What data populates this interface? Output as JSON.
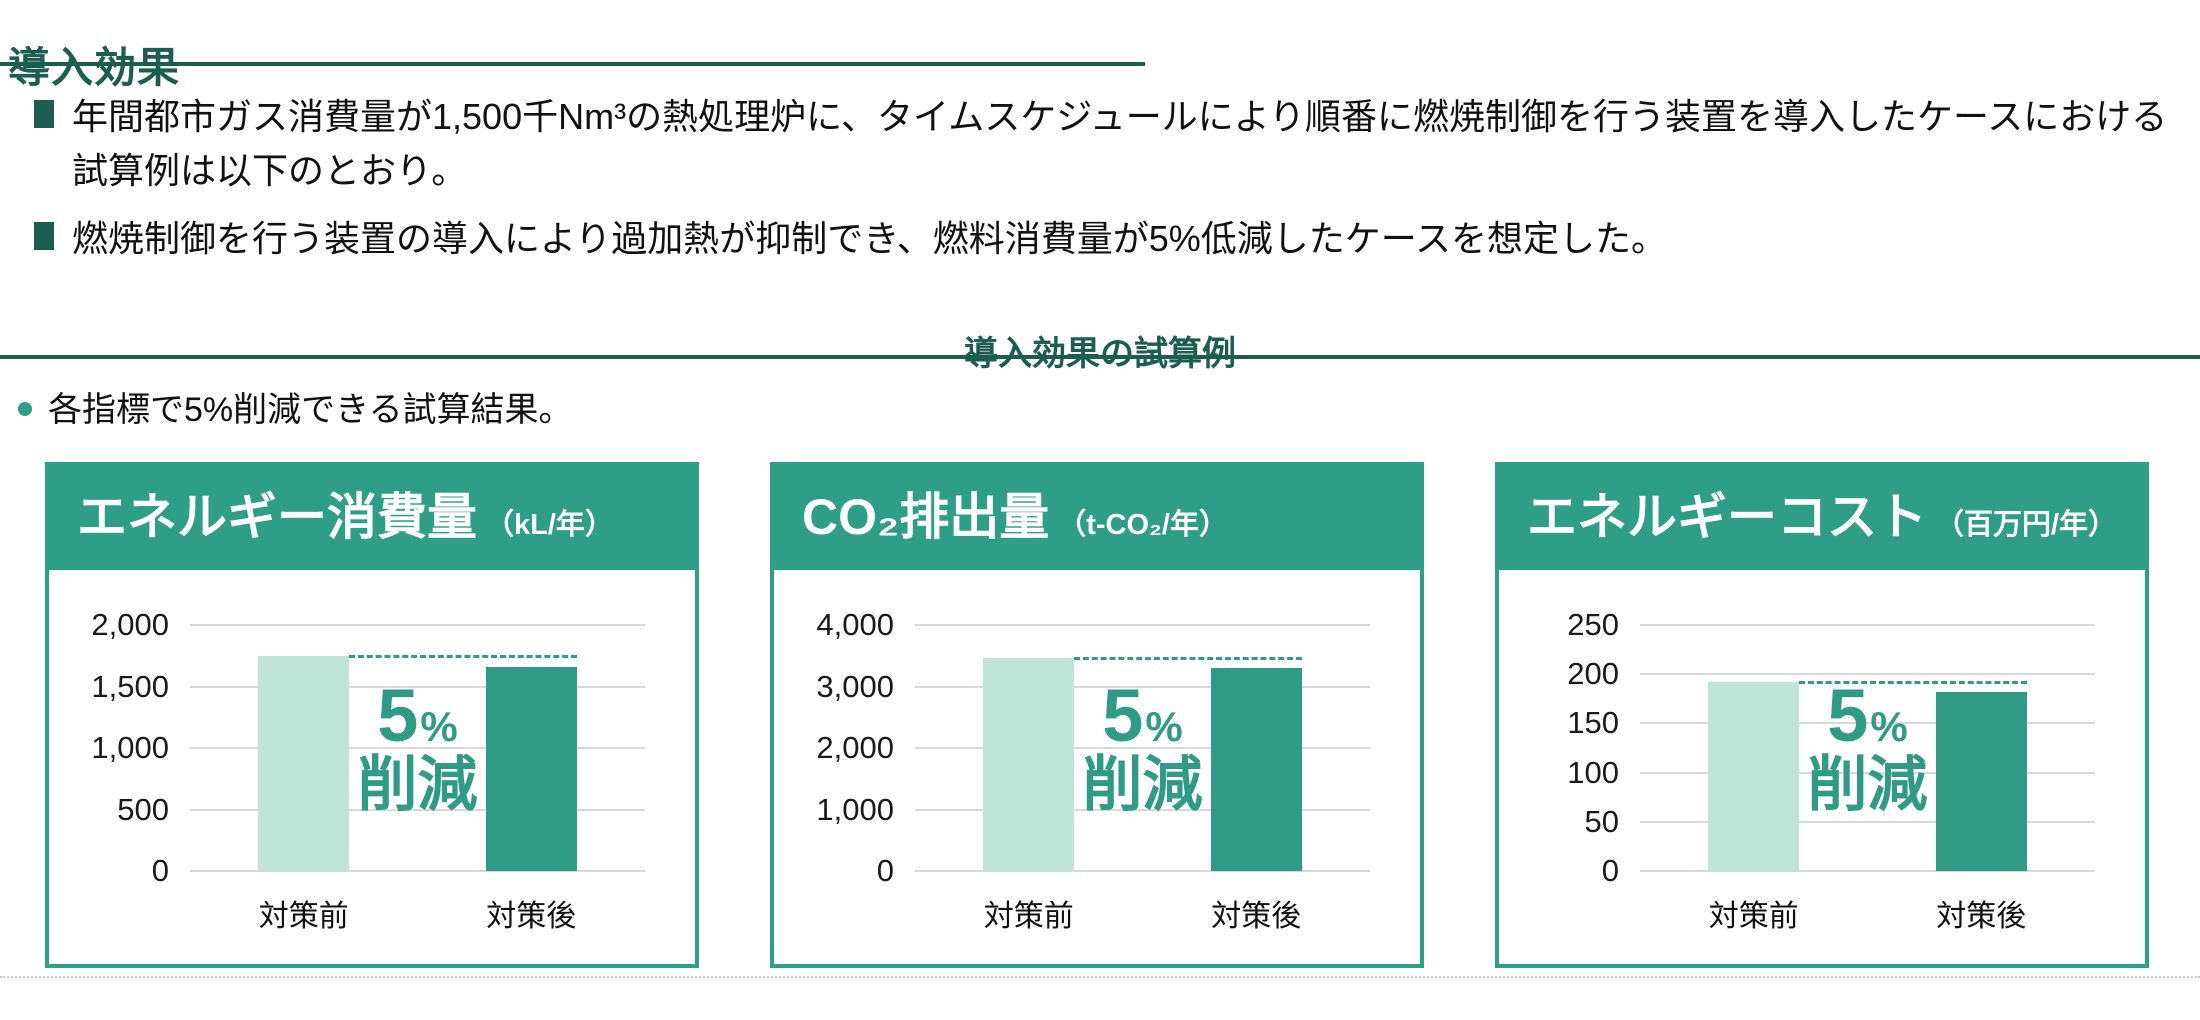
{
  "page": {
    "title": "導入効果",
    "bullets": [
      "年間都市ガス消費量が1,500千Nm³の熱処理炉に、タイムスケジュールにより順番に燃焼制御を行う装置を導入したケースにおける試算例は以下のとおり。",
      "燃焼制御を行う装置の導入により過加熱が抑制でき、燃料消費量が5%低減したケースを想定した。"
    ],
    "section_heading": "導入効果の試算例",
    "sub_bullet": "各指標で5%削減できる試算結果。"
  },
  "colors": {
    "accent_dark": "#1b5e50",
    "accent_teal": "#2f9e86",
    "bar_light": "#bee5d8",
    "bar_dark": "#2f9b84",
    "gridline": "#d9d9d9"
  },
  "chart_data": [
    {
      "type": "bar",
      "title": "エネルギー消費量",
      "unit": "（kL/年）",
      "categories": [
        "対策前",
        "対策後"
      ],
      "values": [
        1750,
        1660
      ],
      "ylim": [
        0,
        2000
      ],
      "yticks": [
        0,
        500,
        1000,
        1500,
        2000
      ],
      "grid": true,
      "legend": "none",
      "annotation": {
        "value": "5",
        "suffix": "%",
        "label": "削減"
      },
      "reference_line": "dashed at before-value"
    },
    {
      "type": "bar",
      "title": "CO₂排出量",
      "unit": "（t-CO₂/年）",
      "categories": [
        "対策前",
        "対策後"
      ],
      "values": [
        3470,
        3300
      ],
      "ylim": [
        0,
        4000
      ],
      "yticks": [
        0,
        1000,
        2000,
        3000,
        4000
      ],
      "grid": true,
      "legend": "none",
      "annotation": {
        "value": "5",
        "suffix": "%",
        "label": "削減"
      },
      "reference_line": "dashed at before-value"
    },
    {
      "type": "bar",
      "title": "エネルギーコスト",
      "unit": "（百万円/年）",
      "categories": [
        "対策前",
        "対策後"
      ],
      "values": [
        192,
        182
      ],
      "ylim": [
        0,
        250
      ],
      "yticks": [
        0,
        50,
        100,
        150,
        200,
        250
      ],
      "grid": true,
      "legend": "none",
      "annotation": {
        "value": "5",
        "suffix": "%",
        "label": "削減"
      },
      "reference_line": "dashed at before-value"
    }
  ]
}
